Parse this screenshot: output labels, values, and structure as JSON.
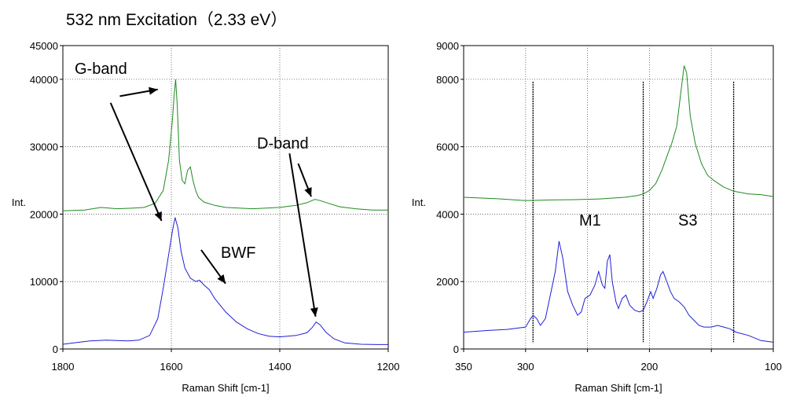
{
  "title": "532 nm Excitation（2.33 eV）",
  "chart_data": [
    {
      "type": "line",
      "xlabel": "Raman Shift [cm-1]",
      "ylabel": "Int.",
      "xlim": [
        1800,
        1200
      ],
      "ylim": [
        0,
        45000
      ],
      "x_ticks": [
        1800,
        1600,
        1400,
        1200
      ],
      "y_ticks": [
        0,
        10000,
        20000,
        30000,
        40000,
        45000
      ],
      "grid": true,
      "series": [
        {
          "color": "#1f8a1f",
          "points": [
            [
              1800,
              20500
            ],
            [
              1760,
              20600
            ],
            [
              1730,
              21000
            ],
            [
              1700,
              20800
            ],
            [
              1670,
              20900
            ],
            [
              1650,
              21000
            ],
            [
              1630,
              21600
            ],
            [
              1615,
              23500
            ],
            [
              1605,
              28000
            ],
            [
              1598,
              34000
            ],
            [
              1595,
              37500
            ],
            [
              1592,
              40000
            ],
            [
              1589,
              36000
            ],
            [
              1585,
              28000
            ],
            [
              1580,
              25000
            ],
            [
              1575,
              24500
            ],
            [
              1570,
              26500
            ],
            [
              1565,
              27000
            ],
            [
              1560,
              25000
            ],
            [
              1555,
              23500
            ],
            [
              1550,
              22500
            ],
            [
              1540,
              21800
            ],
            [
              1520,
              21300
            ],
            [
              1500,
              21000
            ],
            [
              1450,
              20800
            ],
            [
              1400,
              21000
            ],
            [
              1370,
              21300
            ],
            [
              1350,
              21700
            ],
            [
              1335,
              22200
            ],
            [
              1325,
              22000
            ],
            [
              1310,
              21600
            ],
            [
              1290,
              21100
            ],
            [
              1260,
              20800
            ],
            [
              1230,
              20600
            ],
            [
              1200,
              20600
            ]
          ]
        },
        {
          "color": "#1f1fd6",
          "points": [
            [
              1800,
              700
            ],
            [
              1780,
              900
            ],
            [
              1750,
              1200
            ],
            [
              1720,
              1300
            ],
            [
              1700,
              1250
            ],
            [
              1680,
              1200
            ],
            [
              1660,
              1300
            ],
            [
              1640,
              2000
            ],
            [
              1625,
              4500
            ],
            [
              1615,
              9000
            ],
            [
              1605,
              14000
            ],
            [
              1598,
              17500
            ],
            [
              1593,
              19500
            ],
            [
              1588,
              18000
            ],
            [
              1582,
              14500
            ],
            [
              1575,
              12000
            ],
            [
              1565,
              10500
            ],
            [
              1555,
              10000
            ],
            [
              1548,
              10200
            ],
            [
              1540,
              9500
            ],
            [
              1530,
              8800
            ],
            [
              1520,
              7500
            ],
            [
              1500,
              5500
            ],
            [
              1480,
              4000
            ],
            [
              1460,
              3000
            ],
            [
              1440,
              2300
            ],
            [
              1420,
              1900
            ],
            [
              1400,
              1800
            ],
            [
              1370,
              2000
            ],
            [
              1350,
              2400
            ],
            [
              1340,
              3200
            ],
            [
              1333,
              4000
            ],
            [
              1326,
              3600
            ],
            [
              1315,
              2500
            ],
            [
              1300,
              1500
            ],
            [
              1280,
              900
            ],
            [
              1250,
              700
            ],
            [
              1220,
              650
            ],
            [
              1200,
              650
            ]
          ]
        }
      ],
      "annotations": [
        {
          "text": "G-band"
        },
        {
          "text": "D-band"
        },
        {
          "text": "BWF"
        }
      ]
    },
    {
      "type": "line",
      "xlabel": "Raman Shift [cm-1]",
      "ylabel": "Int.",
      "xlim": [
        350,
        100
      ],
      "ylim": [
        0,
        9000
      ],
      "x_ticks": [
        350,
        300,
        250,
        200,
        150,
        100
      ],
      "x_tick_labels": [
        "350",
        "300",
        "",
        "200",
        "",
        "100"
      ],
      "y_ticks": [
        0,
        2000,
        4000,
        6000,
        8000,
        9000
      ],
      "grid": true,
      "vlines": [
        294,
        205,
        132
      ],
      "series": [
        {
          "color": "#1f8a1f",
          "points": [
            [
              350,
              4500
            ],
            [
              320,
              4450
            ],
            [
              300,
              4400
            ],
            [
              280,
              4420
            ],
            [
              260,
              4430
            ],
            [
              240,
              4450
            ],
            [
              220,
              4500
            ],
            [
              210,
              4550
            ],
            [
              205,
              4600
            ],
            [
              200,
              4700
            ],
            [
              195,
              4900
            ],
            [
              190,
              5300
            ],
            [
              185,
              5800
            ],
            [
              182,
              6100
            ],
            [
              178,
              6600
            ],
            [
              175,
              7500
            ],
            [
              172,
              8400
            ],
            [
              170,
              8200
            ],
            [
              167,
              6900
            ],
            [
              163,
              6100
            ],
            [
              158,
              5500
            ],
            [
              153,
              5150
            ],
            [
              148,
              5000
            ],
            [
              140,
              4800
            ],
            [
              132,
              4680
            ],
            [
              120,
              4600
            ],
            [
              110,
              4580
            ],
            [
              100,
              4520
            ]
          ]
        },
        {
          "color": "#1f1fd6",
          "points": [
            [
              350,
              500
            ],
            [
              330,
              550
            ],
            [
              315,
              580
            ],
            [
              300,
              650
            ],
            [
              296,
              900
            ],
            [
              294,
              1000
            ],
            [
              291,
              900
            ],
            [
              288,
              700
            ],
            [
              284,
              900
            ],
            [
              280,
              1600
            ],
            [
              276,
              2300
            ],
            [
              273,
              3200
            ],
            [
              270,
              2700
            ],
            [
              266,
              1700
            ],
            [
              262,
              1300
            ],
            [
              258,
              1000
            ],
            [
              255,
              1100
            ],
            [
              252,
              1500
            ],
            [
              248,
              1600
            ],
            [
              244,
              1900
            ],
            [
              241,
              2300
            ],
            [
              238,
              1900
            ],
            [
              236,
              1800
            ],
            [
              234,
              2600
            ],
            [
              232,
              2800
            ],
            [
              230,
              2000
            ],
            [
              227,
              1400
            ],
            [
              225,
              1200
            ],
            [
              222,
              1500
            ],
            [
              219,
              1600
            ],
            [
              216,
              1300
            ],
            [
              212,
              1150
            ],
            [
              208,
              1100
            ],
            [
              205,
              1150
            ],
            [
              202,
              1400
            ],
            [
              199,
              1700
            ],
            [
              197,
              1500
            ],
            [
              194,
              1800
            ],
            [
              191,
              2200
            ],
            [
              189,
              2300
            ],
            [
              186,
              2000
            ],
            [
              183,
              1700
            ],
            [
              180,
              1500
            ],
            [
              176,
              1400
            ],
            [
              172,
              1250
            ],
            [
              168,
              1000
            ],
            [
              164,
              850
            ],
            [
              160,
              700
            ],
            [
              156,
              650
            ],
            [
              150,
              650
            ],
            [
              145,
              700
            ],
            [
              140,
              650
            ],
            [
              135,
              600
            ],
            [
              130,
              500
            ],
            [
              120,
              400
            ],
            [
              110,
              250
            ],
            [
              100,
              200
            ]
          ]
        }
      ],
      "annotations": [
        {
          "text": "M1"
        },
        {
          "text": "S3"
        }
      ]
    }
  ]
}
